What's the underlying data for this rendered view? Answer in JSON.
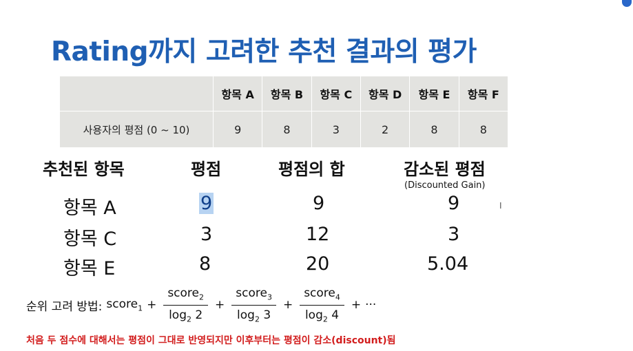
{
  "title": "Rating까지 고려한 추천 결과의 평가",
  "ratings_table": {
    "headers": [
      "",
      "항목 A",
      "항목 B",
      "항목 C",
      "항목 D",
      "항목 E",
      "항목 F"
    ],
    "row_label": "사용자의 평점 (0 ~ 10)",
    "values": [
      "9",
      "8",
      "3",
      "2",
      "8",
      "8"
    ]
  },
  "results": {
    "columns": {
      "item": "추천된 항목",
      "rating": "평점",
      "sum": "평점의 합",
      "dg": "감소된 평점",
      "dg_sub": "(Discounted Gain)"
    },
    "rows": [
      {
        "item": "항목 A",
        "rating": "9",
        "sum": "9",
        "dg": "9"
      },
      {
        "item": "항목 C",
        "rating": "3",
        "sum": "12",
        "dg": "3"
      },
      {
        "item": "항목 E",
        "rating": "8",
        "sum": "20",
        "dg": "5.04"
      }
    ]
  },
  "text_cursor": "I",
  "formula": {
    "label": "순위 고려 방법:",
    "term1": "score",
    "term1_sub": "1",
    "plus": "+",
    "fractions": [
      {
        "num": "score",
        "num_sub": "2",
        "den": "log",
        "den_sub": "2",
        "den_arg": " 2"
      },
      {
        "num": "score",
        "num_sub": "3",
        "den": "log",
        "den_sub": "2",
        "den_arg": " 3"
      },
      {
        "num": "score",
        "num_sub": "4",
        "den": "log",
        "den_sub": "2",
        "den_arg": " 4"
      }
    ],
    "ellipsis": "···"
  },
  "note": "처음 두 점수에 대해서는 평점이 그대로 반영되지만 이후부터는 평점이 감소(discount)됨",
  "colors": {
    "title": "#1f5fb3",
    "note": "#d21d1d",
    "table_bg": "#e3e3e0",
    "highlight": "#b7d3f2"
  }
}
